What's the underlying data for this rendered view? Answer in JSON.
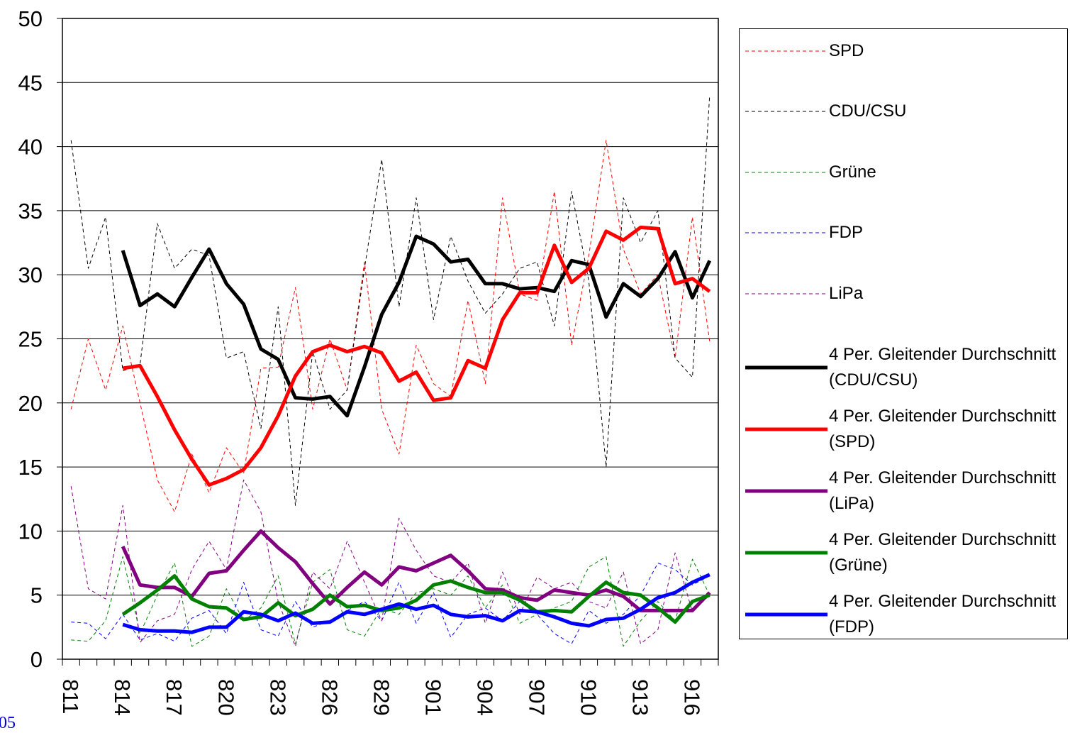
{
  "chart_data": {
    "type": "line",
    "categories": [
      "811",
      null,
      null,
      "814",
      null,
      null,
      "817",
      null,
      null,
      "820",
      null,
      null,
      "823",
      null,
      null,
      "826",
      null,
      null,
      "829",
      null,
      null,
      "901",
      null,
      null,
      "904",
      null,
      null,
      "907",
      null,
      null,
      "910",
      null,
      null,
      "913",
      null,
      null,
      "916",
      null
    ],
    "ylim": [
      0,
      50
    ],
    "yticks": [
      0,
      5,
      10,
      15,
      20,
      25,
      30,
      35,
      40,
      45,
      50
    ],
    "grid": true,
    "legend": "right",
    "series": [
      {
        "name": "SPD",
        "color": "#ff0000",
        "line_style": "dashed",
        "values": [
          19.5,
          25,
          21,
          26,
          20,
          14,
          11.5,
          16,
          13,
          16.5,
          14.5,
          22.7,
          22.8,
          29,
          19.5,
          25,
          21,
          31,
          19.5,
          16,
          24.5,
          21.5,
          20.5,
          28,
          21.5,
          36,
          28.5,
          28,
          36.5,
          24.5,
          31.5,
          40.5,
          32,
          28.5,
          30,
          23.5,
          34.5,
          24.8
        ]
      },
      {
        "name": "CDU/CSU",
        "color": "#000000",
        "line_style": "dashed",
        "values": [
          40.5,
          30.5,
          34.5,
          22.5,
          23,
          34,
          30.5,
          32,
          31.5,
          23.5,
          24,
          18,
          27.5,
          12,
          24,
          19.5,
          21,
          30.5,
          39,
          27.5,
          36,
          26.5,
          33,
          29.5,
          27,
          28.5,
          30.5,
          31,
          26,
          36.5,
          29.5,
          15,
          36,
          32.5,
          35,
          23.5,
          22,
          44
        ]
      },
      {
        "name": "Grüne",
        "color": "#008000",
        "line_style": "dashed",
        "values": [
          1.5,
          1.4,
          3,
          8,
          2,
          5,
          7.5,
          1,
          1.8,
          5.5,
          3,
          4,
          6.5,
          1.2,
          6,
          7,
          2.3,
          1.8,
          4,
          3.5,
          5.2,
          5.5,
          5,
          6.5,
          4,
          5.8,
          2.8,
          3.5,
          4,
          4.5,
          7.2,
          8,
          1,
          3,
          4.5,
          3,
          7.8,
          5
        ]
      },
      {
        "name": "FDP",
        "color": "#0000ff",
        "line_style": "dashed",
        "values": [
          2.9,
          2.8,
          1.6,
          3.5,
          1.5,
          2,
          1.4,
          3.2,
          3.8,
          2,
          6,
          2.3,
          1.8,
          4.5,
          2.5,
          3,
          3.8,
          4.5,
          3,
          6,
          2.8,
          5.2,
          1.7,
          3.5,
          4,
          3,
          4.5,
          3.5,
          2,
          1.2,
          3.8,
          2.8,
          3.5,
          5,
          7.5,
          7,
          5.8,
          6.5
        ]
      },
      {
        "name": "LiPa",
        "color": "#800080",
        "line_style": "dashed",
        "values": [
          13.5,
          5.5,
          4.7,
          12,
          1.3,
          3,
          3.5,
          7,
          9.2,
          7,
          14,
          11.5,
          4.5,
          1,
          6.8,
          5.5,
          9.2,
          6,
          3,
          11,
          8.5,
          6.5,
          6,
          7.5,
          2.8,
          6.8,
          3.5,
          6.4,
          5.5,
          6,
          4.5,
          4,
          6.8,
          1.2,
          2.3,
          8.3,
          3.7,
          5
        ]
      },
      {
        "name": "4 Per. Gleitender Durchschnitt (CDU/CSU)",
        "color": "#000000",
        "line_style": "solid",
        "values": [
          null,
          null,
          null,
          31.9,
          27.6,
          28.5,
          27.5,
          29.8,
          32,
          29.3,
          27.7,
          24.2,
          23.4,
          20.4,
          20.3,
          20.5,
          19,
          22.8,
          26.9,
          29.4,
          33,
          32.4,
          31,
          31.2,
          29.3,
          29.3,
          28.9,
          29,
          28.7,
          31.1,
          30.8,
          26.7,
          29.3,
          28.3,
          29.7,
          31.8,
          28.2,
          31.1
        ]
      },
      {
        "name": "4 Per. Gleitender Durchschnitt (SPD)",
        "color": "#ff0000",
        "line_style": "solid",
        "values": [
          null,
          null,
          null,
          22.7,
          22.9,
          20.5,
          17.9,
          15.6,
          13.6,
          14.1,
          14.8,
          16.5,
          19,
          22.1,
          24,
          24.5,
          24,
          24.4,
          23.9,
          21.7,
          22.4,
          20.2,
          20.4,
          23.3,
          22.7,
          26.5,
          28.6,
          28.6,
          32.3,
          29.4,
          30.5,
          33.4,
          32.7,
          33.7,
          33.6,
          29.3,
          29.7,
          28.7
        ]
      },
      {
        "name": "4 Per. Gleitender Durchschnitt (LiPa)",
        "color": "#800080",
        "line_style": "solid",
        "values": [
          null,
          null,
          null,
          8.8,
          5.8,
          5.6,
          5.6,
          4.9,
          6.7,
          6.9,
          8.5,
          10,
          8.7,
          7.6,
          5.9,
          4.3,
          5.6,
          6.8,
          5.8,
          7.2,
          6.9,
          7.5,
          8.1,
          6.9,
          5.5,
          5.4,
          4.8,
          4.6,
          5.4,
          5.2,
          5,
          5.4,
          4.9,
          3.8,
          3.8,
          3.8,
          3.8,
          5.2
        ]
      },
      {
        "name": "4 Per. Gleitender Durchschnitt (Grüne)",
        "color": "#008000",
        "line_style": "solid",
        "values": [
          null,
          null,
          null,
          3.5,
          4.4,
          5.4,
          6.5,
          4.7,
          4.1,
          4,
          3.1,
          3.3,
          4.4,
          3.4,
          3.9,
          5,
          4.1,
          4.2,
          3.8,
          4,
          4.6,
          5.8,
          6.1,
          5.6,
          5.2,
          5.2,
          4.6,
          3.7,
          3.8,
          3.7,
          4.9,
          6,
          5.2,
          5,
          4,
          2.9,
          4.5,
          5
        ]
      },
      {
        "name": "4 Per. Gleitender Durchschnitt (FDP)",
        "color": "#0000ff",
        "line_style": "solid",
        "values": [
          null,
          null,
          null,
          2.7,
          2.3,
          2.2,
          2.2,
          2.1,
          2.5,
          2.5,
          3.7,
          3.5,
          3,
          3.6,
          2.8,
          2.9,
          3.7,
          3.5,
          3.9,
          4.3,
          3.9,
          4.2,
          3.5,
          3.3,
          3.4,
          3,
          3.8,
          3.7,
          3.3,
          2.8,
          2.6,
          3.1,
          3.2,
          3.9,
          4.8,
          5.2,
          6,
          6.6
        ]
      }
    ]
  },
  "page_number": "05"
}
